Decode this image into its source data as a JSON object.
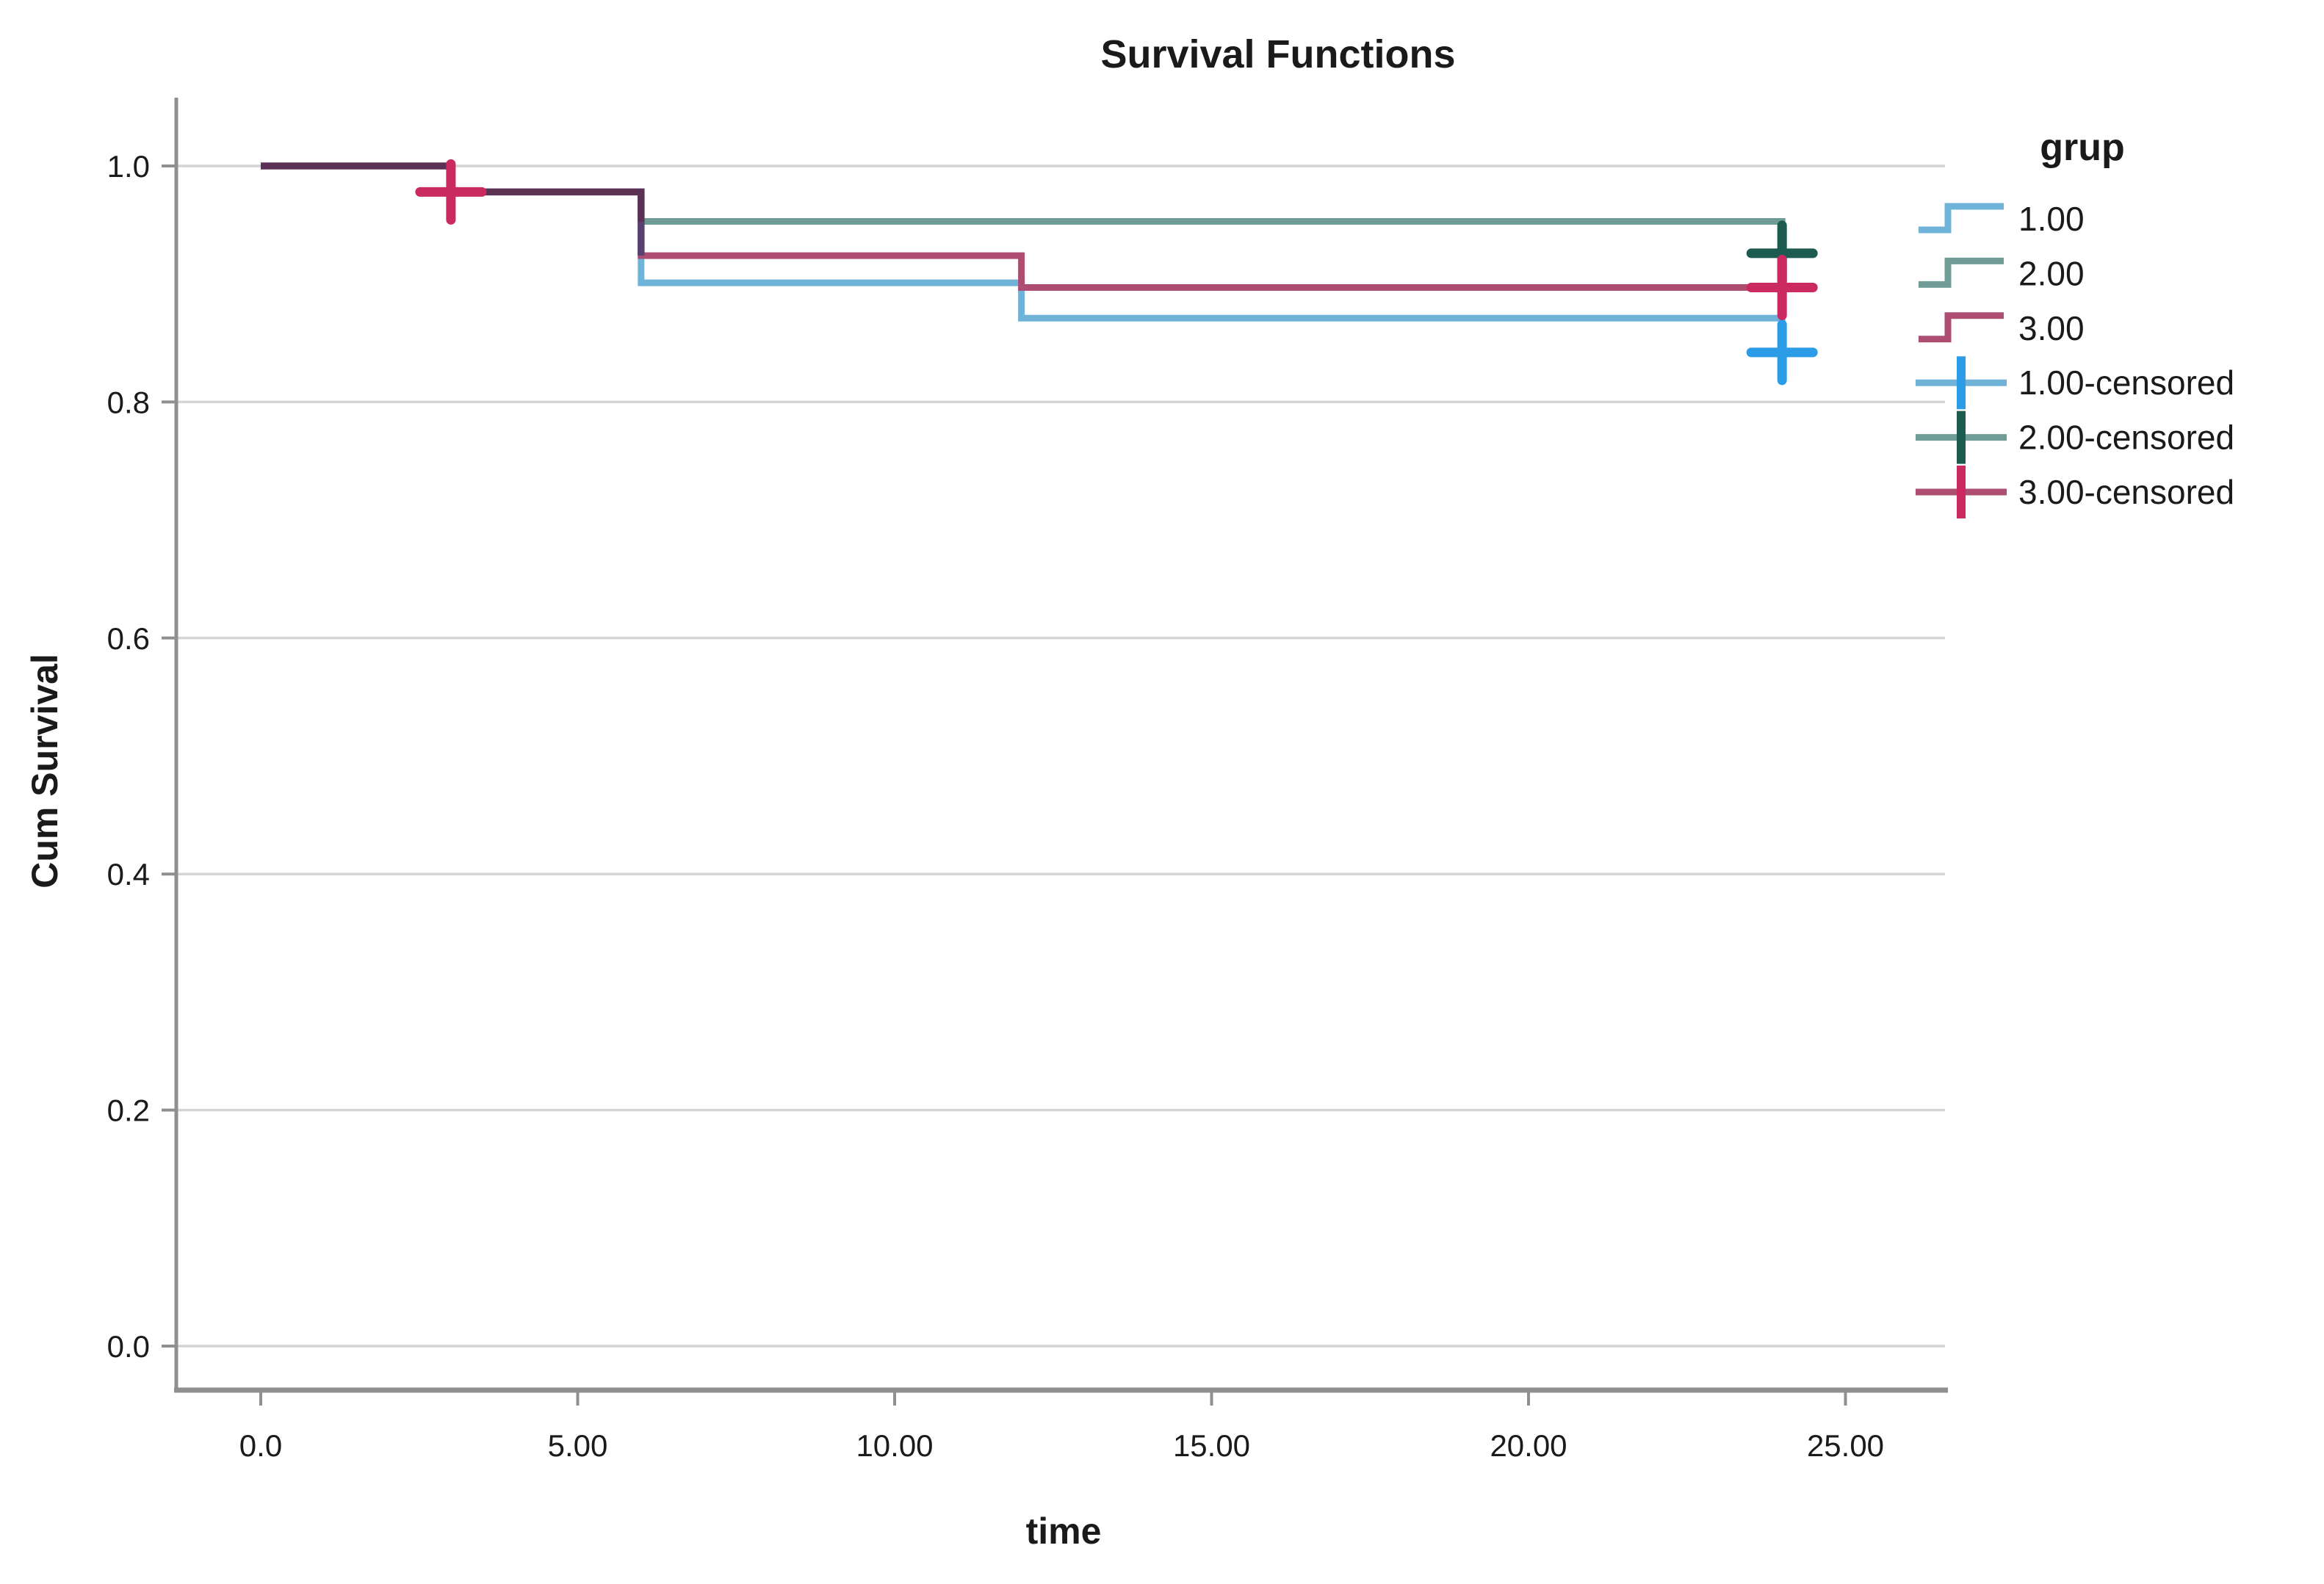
{
  "chart_data": {
    "type": "line",
    "subtype": "kaplan-meier-step",
    "title": "Survival Functions",
    "xlabel": "time",
    "ylabel": "Cum Survival",
    "legend_title": "grup",
    "legend_position": "right",
    "grid": "horizontal",
    "xlim": [
      0,
      26.6
    ],
    "ylim": [
      0.0,
      1.0
    ],
    "xticks": {
      "values": [
        0,
        5,
        10,
        15,
        20,
        25
      ],
      "labels": [
        "0.0",
        "5.00",
        "10.00",
        "15.00",
        "20.00",
        "25.00"
      ]
    },
    "yticks": {
      "values": [
        0.0,
        0.2,
        0.4,
        0.6,
        0.8,
        1.0
      ],
      "labels": [
        "0.0",
        "0.2",
        "0.4",
        "0.6",
        "0.8",
        "1.0"
      ]
    },
    "series": [
      {
        "name": "1.00",
        "color": "#6fb3d9",
        "marker_color": "#2d9ce6",
        "points": [
          [
            0,
            1.0
          ],
          [
            3,
            0.978
          ],
          [
            6,
            0.901
          ],
          [
            12,
            0.871
          ],
          [
            24,
            0.842
          ]
        ],
        "censored": [
          [
            24,
            0.842
          ]
        ]
      },
      {
        "name": "2.00",
        "color": "#6f9c97",
        "marker_color": "#1d5a50",
        "points": [
          [
            0,
            1.0
          ],
          [
            3,
            0.978
          ],
          [
            6,
            0.953
          ],
          [
            24,
            0.926
          ]
        ],
        "censored": [
          [
            24,
            0.926
          ]
        ]
      },
      {
        "name": "3.00",
        "color": "#ad4d72",
        "marker_color": "#ca2a60",
        "points": [
          [
            0,
            1.0
          ],
          [
            3,
            0.978
          ],
          [
            6,
            0.924
          ],
          [
            12,
            0.897
          ],
          [
            24,
            0.897
          ]
        ],
        "censored": [
          [
            3,
            0.978
          ],
          [
            24,
            0.897
          ]
        ]
      }
    ],
    "legend_entries": [
      "1.00",
      "2.00",
      "3.00",
      "1.00-censored",
      "2.00-censored",
      "3.00-censored"
    ],
    "overlap_segments": [
      {
        "color": "#5b3154",
        "points": [
          [
            0,
            1.0
          ],
          [
            3,
            1.0
          ],
          [
            3,
            0.978
          ],
          [
            6,
            0.978
          ],
          [
            6,
            0.953
          ]
        ]
      },
      {
        "color": "#58406f",
        "points": [
          [
            6,
            0.953
          ],
          [
            6,
            0.924
          ]
        ]
      }
    ],
    "colors": {
      "grid": "#d4d4d4",
      "axis": "#8f8f8f",
      "text": "#1a1a1a"
    }
  }
}
